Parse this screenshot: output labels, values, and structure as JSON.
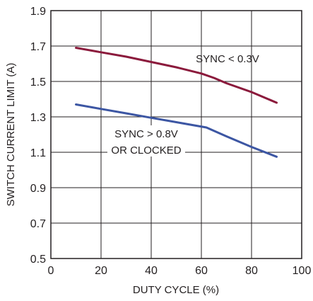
{
  "chart_data": {
    "type": "line",
    "title": "",
    "xlabel": "DUTY CYCLE (%)",
    "ylabel": "SWITCH CURRENT LIMIT (A)",
    "xlim": [
      0,
      100
    ],
    "ylim": [
      0.5,
      1.9
    ],
    "xticks": [
      "0",
      "20",
      "40",
      "60",
      "80",
      "100"
    ],
    "yticks": [
      "0.5",
      "0.7",
      "0.9",
      "1.1",
      "1.3",
      "1.5",
      "1.7",
      "1.9"
    ],
    "grid": true,
    "series": [
      {
        "name": "SYNC < 0.3V",
        "color": "#8b1a3c",
        "x": [
          10,
          20,
          30,
          40,
          50,
          60,
          65,
          70,
          80,
          90
        ],
        "y": [
          1.69,
          1.665,
          1.64,
          1.61,
          1.58,
          1.545,
          1.52,
          1.49,
          1.44,
          1.38
        ]
      },
      {
        "name": "SYNC > 0.8V OR CLOCKED",
        "color": "#3c56a3",
        "x": [
          10,
          20,
          30,
          40,
          50,
          62,
          70,
          80,
          90
        ],
        "y": [
          1.37,
          1.345,
          1.32,
          1.295,
          1.27,
          1.24,
          1.19,
          1.13,
          1.075
        ]
      }
    ],
    "annotations": [
      {
        "lines": [
          "SYNC < 0.3V"
        ]
      },
      {
        "lines": [
          "SYNC > 0.8V",
          "OR CLOCKED"
        ]
      }
    ]
  }
}
